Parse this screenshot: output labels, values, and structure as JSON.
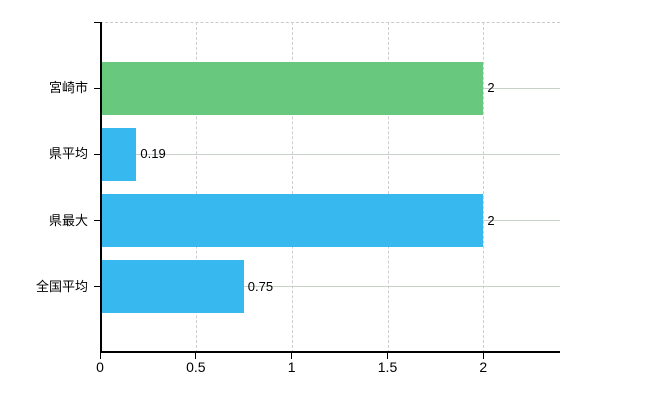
{
  "chart_data": {
    "type": "bar",
    "orientation": "horizontal",
    "title": "",
    "categories": [
      "宮崎市",
      "県平均",
      "県最大",
      "全国平均"
    ],
    "values": [
      2,
      0.19,
      2,
      0.75
    ],
    "value_labels": [
      "2",
      "0.19",
      "2",
      "0.75"
    ],
    "bar_colors": [
      "#68c87e",
      "#37b9ef",
      "#37b9ef",
      "#37b9ef"
    ],
    "x_axis": {
      "tick_labels": [
        "0",
        "0.5",
        "1",
        "1.5",
        "2"
      ],
      "tick_values": [
        0,
        0.5,
        1,
        1.5,
        2
      ],
      "range": [
        0,
        2.4
      ]
    },
    "xlabel": "",
    "ylabel": "",
    "grid": {
      "horizontal_style": "solid",
      "vertical_style": "dashed",
      "top_border_style": "dashed"
    },
    "colors": {
      "axis": "#000000",
      "text": "#000000",
      "grid_horizontal": "#c7d1c7",
      "grid_vertical": "#d2ccd2",
      "plot_top_border": "#c9c9c9",
      "background": "#ffffff"
    },
    "legend_visible": false
  }
}
